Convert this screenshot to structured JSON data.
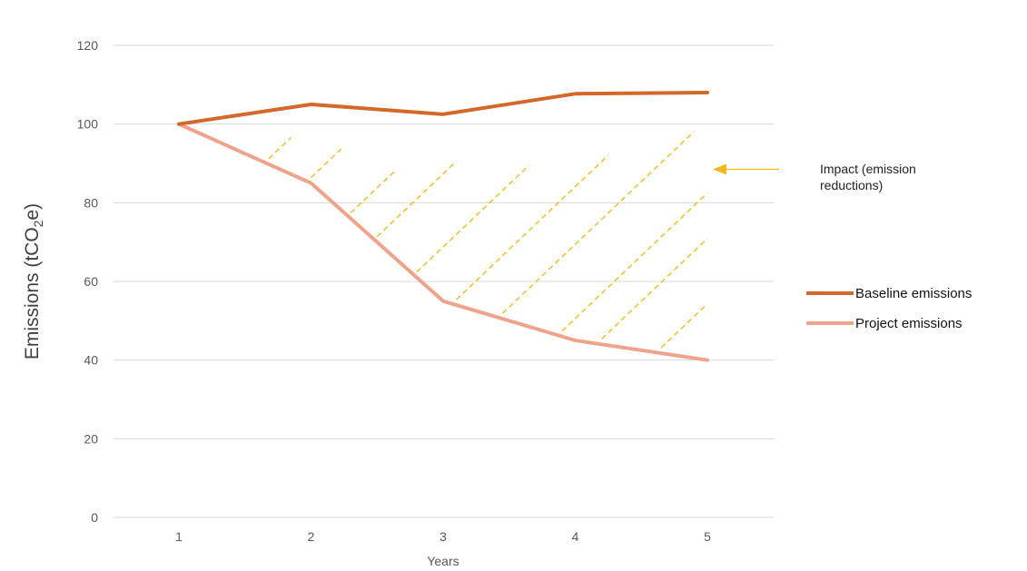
{
  "chart_data": {
    "type": "line",
    "x": [
      1,
      2,
      3,
      4,
      5
    ],
    "xticks": [
      "1",
      "2",
      "3",
      "4",
      "5"
    ],
    "xlabel": "Years",
    "ylabel": {
      "main": "Emissions (tCO",
      "sub": "2",
      "end": "e)"
    },
    "ylim": [
      0,
      120
    ],
    "yticks": [
      0,
      20,
      40,
      60,
      80,
      100,
      120
    ],
    "grid": true,
    "legend_position": "right",
    "series": [
      {
        "name": "Baseline emissions",
        "color": "#D2692A",
        "values": [
          100,
          105,
          102.5,
          107.7,
          108
        ]
      },
      {
        "name": "Project emissions",
        "color": "#EFA38C",
        "values": [
          100,
          85,
          55,
          45,
          40
        ]
      }
    ],
    "annotation": {
      "text_lines": [
        "Impact (emission",
        "reductions)"
      ],
      "color": "#F2B91A",
      "arrow_y": 88.5,
      "hatch": "dashed diagonal lines between baseline and project emissions"
    }
  }
}
